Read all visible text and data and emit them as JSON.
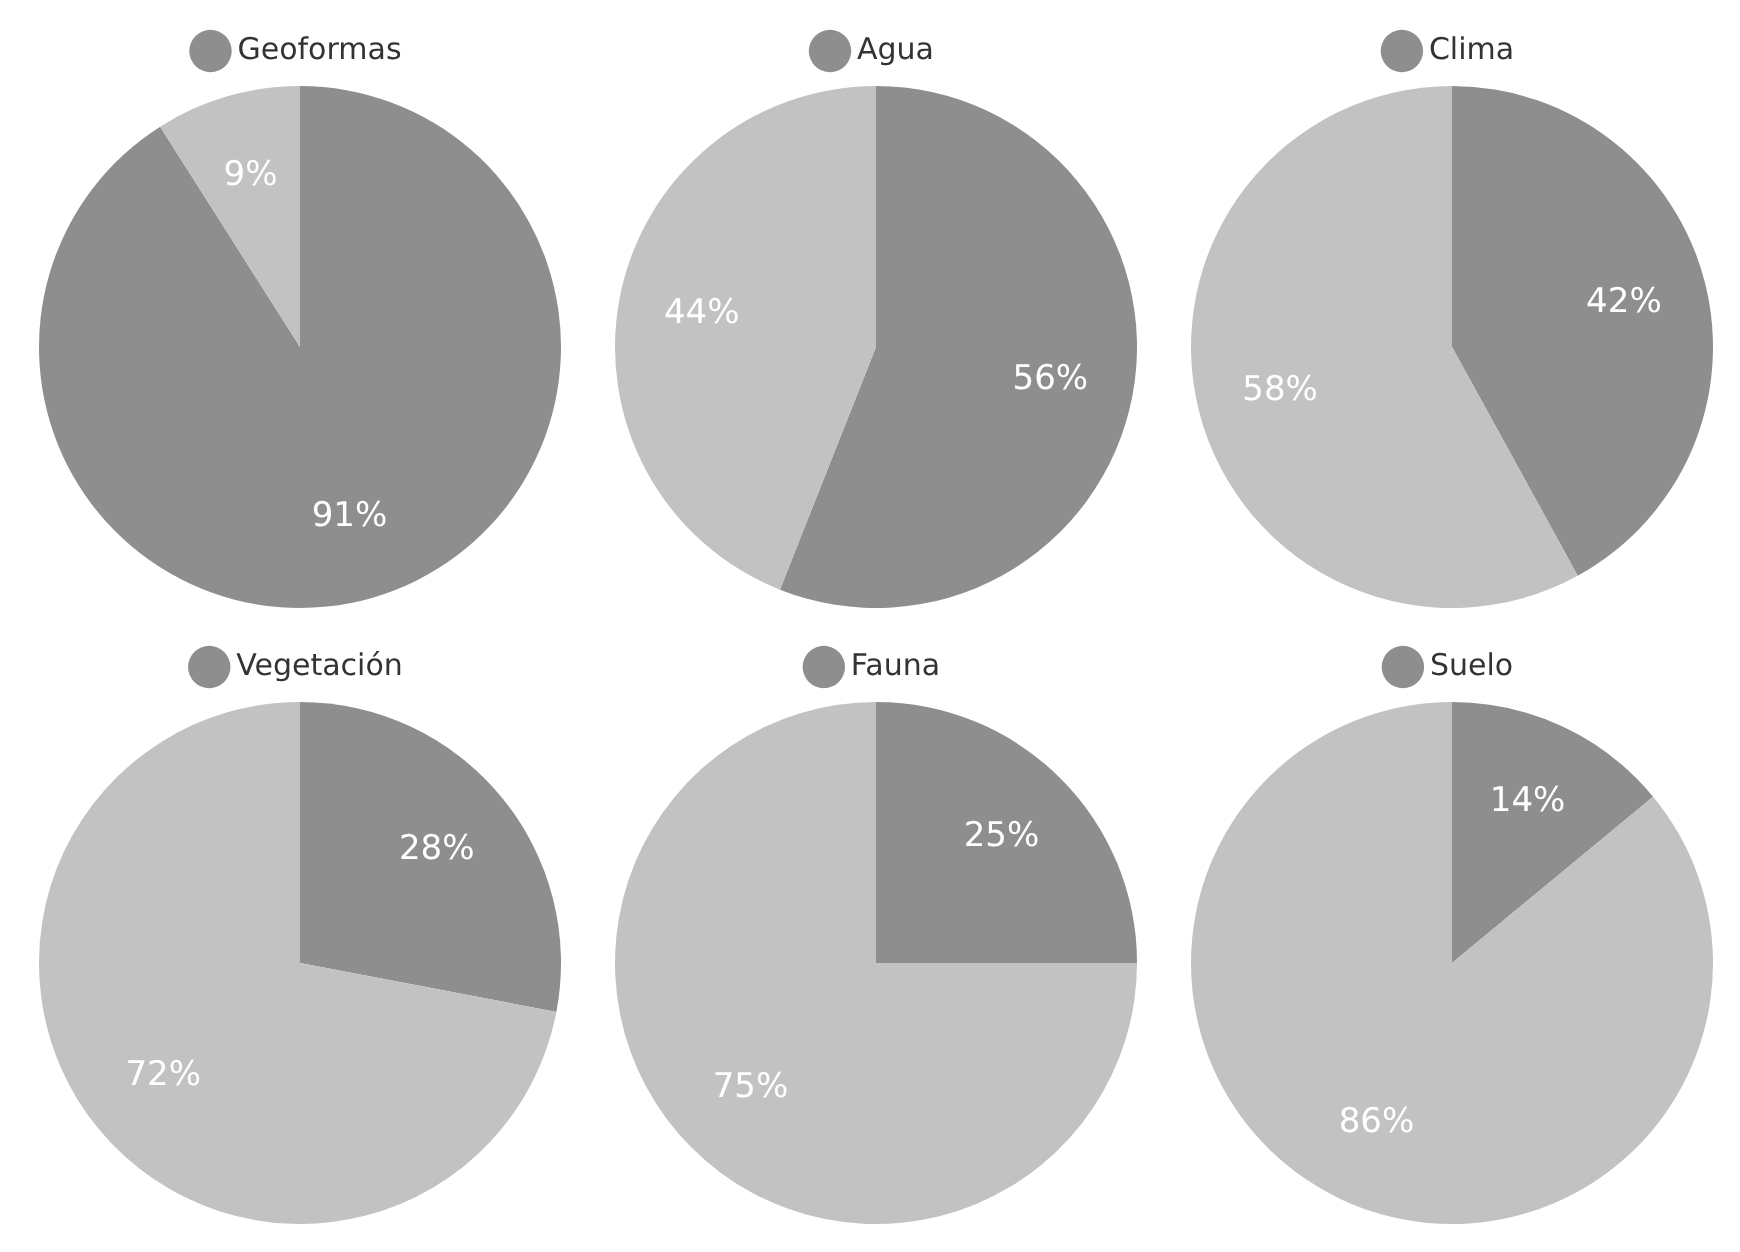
{
  "chart_data": [
    {
      "type": "pie",
      "categories": [
        "Geoformas",
        null
      ],
      "values": [
        91,
        9
      ],
      "colors": [
        "#8e8e8e",
        "#c2c2c2"
      ],
      "value_labels": [
        "91%",
        "9%"
      ],
      "legend": "top"
    },
    {
      "type": "pie",
      "categories": [
        "Agua",
        null
      ],
      "values": [
        56,
        44
      ],
      "colors": [
        "#8e8e8e",
        "#c2c2c2"
      ],
      "value_labels": [
        "56%",
        "44%"
      ],
      "legend": "top"
    },
    {
      "type": "pie",
      "categories": [
        "Clima",
        null
      ],
      "values": [
        42,
        58
      ],
      "colors": [
        "#8e8e8e",
        "#c2c2c2"
      ],
      "value_labels": [
        "42%",
        "58%"
      ],
      "legend": "top"
    },
    {
      "type": "pie",
      "categories": [
        "Vegetación",
        null
      ],
      "values": [
        28,
        72
      ],
      "colors": [
        "#8e8e8e",
        "#c2c2c2"
      ],
      "value_labels": [
        "28%",
        "72%"
      ],
      "legend": "top"
    },
    {
      "type": "pie",
      "categories": [
        "Fauna",
        null
      ],
      "values": [
        25,
        75
      ],
      "colors": [
        "#8e8e8e",
        "#c2c2c2"
      ],
      "value_labels": [
        "25%",
        "75%"
      ],
      "legend": "top"
    },
    {
      "type": "pie",
      "categories": [
        "Suelo",
        null
      ],
      "values": [
        14,
        86
      ],
      "colors": [
        "#8e8e8e",
        "#c2c2c2"
      ],
      "value_labels": [
        "14%",
        "86%"
      ],
      "legend": "top"
    }
  ]
}
